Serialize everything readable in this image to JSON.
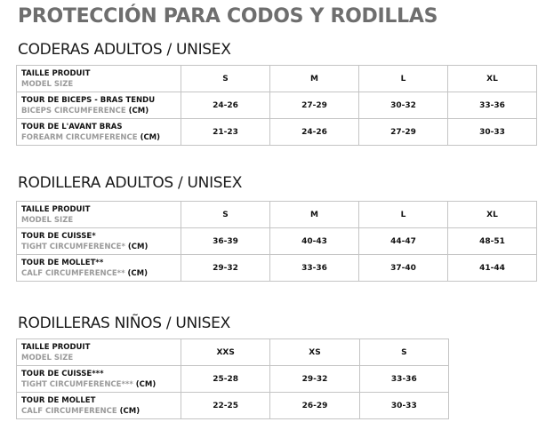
{
  "title": "PROTECCIÓN PARA CODOS Y RODILLAS",
  "sections": [
    {
      "heading": "CODERAS ADULTOS / UNISEX",
      "sizes": [
        "S",
        "M",
        "L",
        "XL"
      ],
      "size_label": {
        "fr": "TAILLE PRODUIT",
        "en": "MODEL SIZE"
      },
      "rows": [
        {
          "fr": "TOUR DE BICEPS - BRAS TENDU",
          "en": "BICEPS CIRCUMFERENCE",
          "unit": "(CM)",
          "values": [
            "24-26",
            "27-29",
            "30-32",
            "33-36"
          ]
        },
        {
          "fr": "TOUR DE L'AVANT BRAS",
          "en": "FOREARM CIRCUMFERENCE",
          "unit": "(CM)",
          "values": [
            "21-23",
            "24-26",
            "27-29",
            "30-33"
          ]
        }
      ]
    },
    {
      "heading": "RODILLERA ADULTOS / UNISEX",
      "sizes": [
        "S",
        "M",
        "L",
        "XL"
      ],
      "size_label": {
        "fr": "TAILLE PRODUIT",
        "en": "MODEL SIZE"
      },
      "rows": [
        {
          "fr": "TOUR DE CUISSE*",
          "en": "TIGHT CIRCUMFERENCE*",
          "unit": "(CM)",
          "values": [
            "36-39",
            "40-43",
            "44-47",
            "48-51"
          ]
        },
        {
          "fr": "TOUR DE MOLLET**",
          "en": "CALF CIRCUMFERENCE**",
          "unit": "(CM)",
          "values": [
            "29-32",
            "33-36",
            "37-40",
            "41-44"
          ]
        }
      ]
    },
    {
      "heading": "RODILLERAS NIÑOS / UNISEX",
      "sizes": [
        "XXS",
        "XS",
        "S"
      ],
      "size_label": {
        "fr": "TAILLE PRODUIT",
        "en": "MODEL SIZE"
      },
      "rows": [
        {
          "fr": "TOUR DE CUISSE***",
          "en": "TIGHT CIRCUMFERENCE***",
          "unit": "(CM)",
          "values": [
            "25-28",
            "29-32",
            "33-36"
          ]
        },
        {
          "fr": "TOUR DE MOLLET",
          "en": "CALF CIRCUMFERENCE",
          "unit": "(CM)",
          "values": [
            "22-25",
            "26-29",
            "30-33"
          ]
        }
      ]
    }
  ]
}
